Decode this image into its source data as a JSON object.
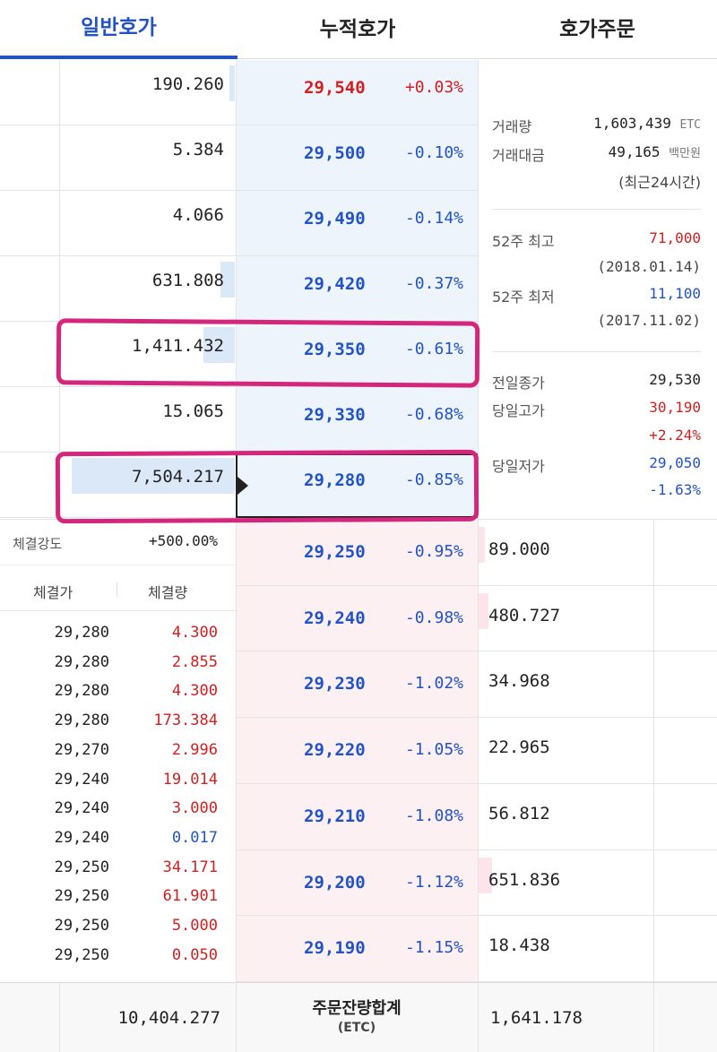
{
  "tabs": [
    {
      "label": "일반호가",
      "active": true
    },
    {
      "label": "누적호가",
      "active": false
    },
    {
      "label": "호가주문",
      "active": false
    }
  ],
  "asks": [
    {
      "qty": "190.260",
      "price": "29,540",
      "change": "+0.03%",
      "dir": "up",
      "bar": 0.02
    },
    {
      "qty": "5.384",
      "price": "29,500",
      "change": "-0.10%",
      "dir": "down",
      "bar": 0
    },
    {
      "qty": "4.066",
      "price": "29,490",
      "change": "-0.14%",
      "dir": "down",
      "bar": 0
    },
    {
      "qty": "631.808",
      "price": "29,420",
      "change": "-0.37%",
      "dir": "down",
      "bar": 0.08
    },
    {
      "qty": "1,411.432",
      "price": "29,350",
      "change": "-0.61%",
      "dir": "down",
      "bar": 0.18
    },
    {
      "qty": "15.065",
      "price": "29,330",
      "change": "-0.68%",
      "dir": "down",
      "bar": 0
    },
    {
      "qty": "7,504.217",
      "price": "29,280",
      "change": "-0.85%",
      "dir": "down",
      "bar": 0.93
    }
  ],
  "bids": [
    {
      "price": "29,250",
      "change": "-0.95%",
      "qty": "89.000",
      "bar": 0.01
    },
    {
      "price": "29,240",
      "change": "-0.98%",
      "qty": "480.727",
      "bar": 0.06
    },
    {
      "price": "29,230",
      "change": "-1.02%",
      "qty": "34.968",
      "bar": 0
    },
    {
      "price": "29,220",
      "change": "-1.05%",
      "qty": "22.965",
      "bar": 0
    },
    {
      "price": "29,210",
      "change": "-1.08%",
      "qty": "56.812",
      "bar": 0
    },
    {
      "price": "29,200",
      "change": "-1.12%",
      "qty": "651.836",
      "bar": 0.08
    },
    {
      "price": "29,190",
      "change": "-1.15%",
      "qty": "18.438",
      "bar": 0
    }
  ],
  "info": {
    "volume_label": "거래량",
    "volume_value": "1,603,439",
    "volume_unit": "ETC",
    "amount_label": "거래대금",
    "amount_value": "49,165",
    "amount_unit": "백만원",
    "amount_note": "(최근24시간)",
    "high52_label": "52주 최고",
    "high52_value": "71,000",
    "high52_date": "(2018.01.14)",
    "low52_label": "52주 최저",
    "low52_value": "11,100",
    "low52_date": "(2017.11.02)",
    "prev_close_label": "전일종가",
    "prev_close_value": "29,530",
    "day_high_label": "당일고가",
    "day_high_value": "30,190",
    "day_high_change": "+2.24%",
    "day_low_label": "당일저가",
    "day_low_value": "29,050",
    "day_low_change": "-1.63%"
  },
  "trades": {
    "strength_label": "체결강도",
    "strength_value": "+500.00%",
    "col_price": "체결가",
    "col_qty": "체결량",
    "rows": [
      {
        "price": "29,280",
        "qty": "4.300",
        "dir": "up"
      },
      {
        "price": "29,280",
        "qty": "2.855",
        "dir": "up"
      },
      {
        "price": "29,280",
        "qty": "4.300",
        "dir": "up"
      },
      {
        "price": "29,280",
        "qty": "173.384",
        "dir": "up"
      },
      {
        "price": "29,270",
        "qty": "2.996",
        "dir": "up"
      },
      {
        "price": "29,240",
        "qty": "19.014",
        "dir": "up"
      },
      {
        "price": "29,240",
        "qty": "3.000",
        "dir": "up"
      },
      {
        "price": "29,240",
        "qty": "0.017",
        "dir": "down"
      },
      {
        "price": "29,250",
        "qty": "34.171",
        "dir": "up"
      },
      {
        "price": "29,250",
        "qty": "61.901",
        "dir": "up"
      },
      {
        "price": "29,250",
        "qty": "5.000",
        "dir": "up"
      },
      {
        "price": "29,250",
        "qty": "0.050",
        "dir": "up"
      }
    ]
  },
  "footer": {
    "ask_total": "10,404.277",
    "label": "주문잔량합계",
    "unit": "(ETC)",
    "bid_total": "1,641.178"
  },
  "colors": {
    "up": "#d12020",
    "down": "#2253c5",
    "accent": "#2253c5",
    "highlight": "#d4267c"
  }
}
